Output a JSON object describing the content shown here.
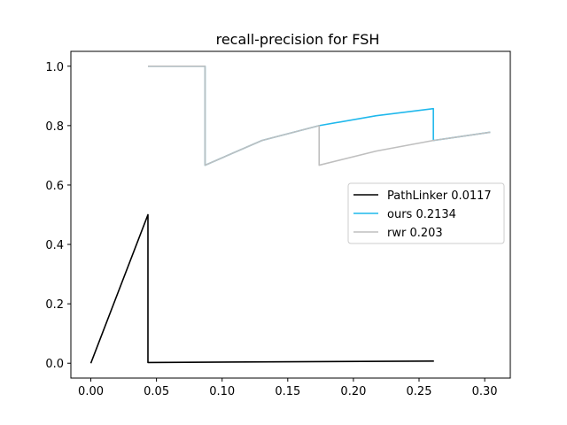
{
  "chart_data": {
    "type": "line",
    "title": "recall-precision for FSH",
    "xlabel": "",
    "ylabel": "",
    "xlim": [
      -0.0152,
      0.3195
    ],
    "ylim": [
      -0.05,
      1.05
    ],
    "xticks": [
      0.0,
      0.05,
      0.1,
      0.15,
      0.2,
      0.25,
      0.3
    ],
    "xtick_labels": [
      "0.00",
      "0.05",
      "0.10",
      "0.15",
      "0.20",
      "0.25",
      "0.30"
    ],
    "yticks": [
      0.0,
      0.2,
      0.4,
      0.6,
      0.8,
      1.0
    ],
    "ytick_labels": [
      "0.0",
      "0.2",
      "0.4",
      "0.6",
      "0.8",
      "1.0"
    ],
    "grid": false,
    "legend_position": "center-right",
    "series": [
      {
        "name": "PathLinker 0.0117",
        "color": "#000000",
        "x": [
          0.0,
          0.0435,
          0.0435,
          0.2609,
          0.2609
        ],
        "y": [
          0.0,
          0.5,
          0.0025,
          0.0072,
          0.005
        ]
      },
      {
        "name": "ours 0.2134",
        "color": "#1fb8ec",
        "x": [
          0.0435,
          0.0435,
          0.087,
          0.087,
          0.087,
          0.1304,
          0.1739,
          0.2174,
          0.2609,
          0.2609,
          0.3043
        ],
        "y": [
          1.0,
          1.0,
          1.0,
          0.6667,
          0.6667,
          0.75,
          0.8,
          0.8333,
          0.8571,
          0.75,
          0.7778
        ]
      },
      {
        "name": "rwr 0.203",
        "color": "#bfbfbf",
        "x": [
          0.0435,
          0.087,
          0.087,
          0.1304,
          0.1739,
          0.1739,
          0.2174,
          0.2609,
          0.3043
        ],
        "y": [
          1.0,
          1.0,
          0.6667,
          0.75,
          0.8,
          0.6667,
          0.7143,
          0.75,
          0.7778
        ]
      }
    ]
  }
}
